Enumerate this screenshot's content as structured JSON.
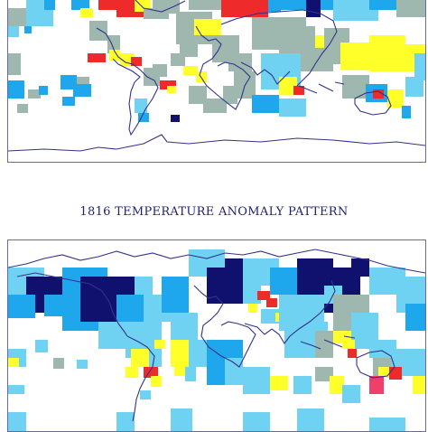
{
  "caption": "1816 TEMPERATURE ANOMALY PATTERN",
  "palette": {
    "red": "#ef2a2a",
    "pink": "#ef3f6a",
    "yellow": "#ffff2a",
    "gray": "#9eb7af",
    "lightblue": "#6fd2f2",
    "blue": "#1fa7ee",
    "navy": "#10106e",
    "coast": "#33338a"
  }
}
